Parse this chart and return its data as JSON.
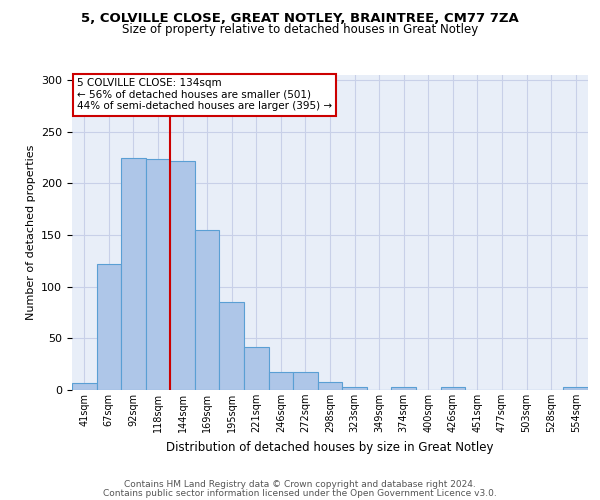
{
  "title1": "5, COLVILLE CLOSE, GREAT NOTLEY, BRAINTREE, CM77 7ZA",
  "title2": "Size of property relative to detached houses in Great Notley",
  "xlabel": "Distribution of detached houses by size in Great Notley",
  "ylabel": "Number of detached properties",
  "bin_labels": [
    "41sqm",
    "67sqm",
    "92sqm",
    "118sqm",
    "144sqm",
    "169sqm",
    "195sqm",
    "221sqm",
    "246sqm",
    "272sqm",
    "298sqm",
    "323sqm",
    "349sqm",
    "374sqm",
    "400sqm",
    "426sqm",
    "451sqm",
    "477sqm",
    "503sqm",
    "528sqm",
    "554sqm"
  ],
  "bar_heights": [
    7,
    122,
    225,
    224,
    222,
    155,
    85,
    42,
    17,
    17,
    8,
    3,
    0,
    3,
    0,
    3,
    0,
    0,
    0,
    0,
    3
  ],
  "bar_color": "#aec6e8",
  "bar_edge_color": "#5a9fd4",
  "vline_x": 3.5,
  "vline_color": "#cc0000",
  "annotation_text": "5 COLVILLE CLOSE: 134sqm\n← 56% of detached houses are smaller (501)\n44% of semi-detached houses are larger (395) →",
  "annotation_box_color": "#ffffff",
  "annotation_box_edge": "#cc0000",
  "ylim": [
    0,
    305
  ],
  "yticks": [
    0,
    50,
    100,
    150,
    200,
    250,
    300
  ],
  "grid_color": "#c8d0e8",
  "bg_color": "#e8eef8",
  "footer1": "Contains HM Land Registry data © Crown copyright and database right 2024.",
  "footer2": "Contains public sector information licensed under the Open Government Licence v3.0."
}
